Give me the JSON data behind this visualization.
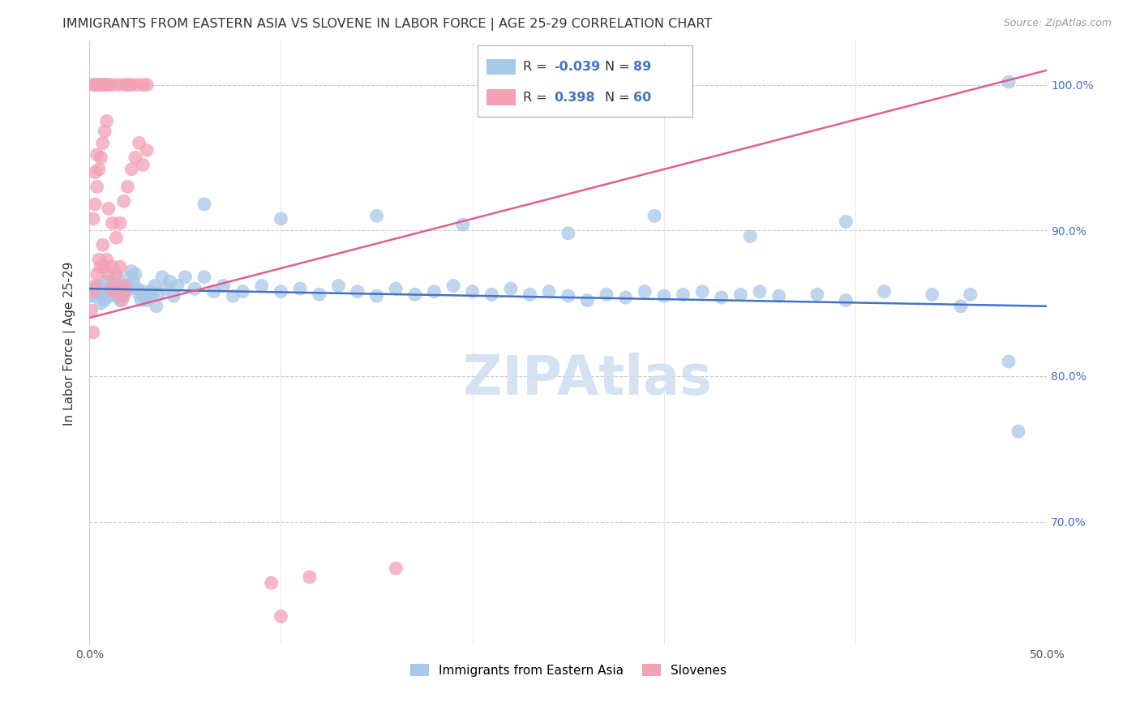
{
  "title": "IMMIGRANTS FROM EASTERN ASIA VS SLOVENE IN LABOR FORCE | AGE 25-29 CORRELATION CHART",
  "source": "Source: ZipAtlas.com",
  "ylabel": "In Labor Force | Age 25-29",
  "xlim": [
    0.0,
    0.5
  ],
  "ylim": [
    0.615,
    1.03
  ],
  "xticks": [
    0.0,
    0.1,
    0.2,
    0.3,
    0.4,
    0.5
  ],
  "xticklabels": [
    "0.0%",
    "",
    "",
    "",
    "",
    "50.0%"
  ],
  "ytick_positions": [
    0.7,
    0.8,
    0.9,
    1.0
  ],
  "yticklabels": [
    "70.0%",
    "80.0%",
    "90.0%",
    "100.0%"
  ],
  "color_blue": "#a8c8e8",
  "color_pink": "#f4a0b5",
  "trendline_blue": "#4472c4",
  "trendline_pink": "#e06090",
  "watermark_color": "#d0dff0",
  "background_color": "#ffffff",
  "grid_color": "#dddddd",
  "blue_scatter": [
    [
      0.002,
      0.855
    ],
    [
      0.003,
      0.86
    ],
    [
      0.004,
      0.858
    ],
    [
      0.005,
      0.862
    ],
    [
      0.006,
      0.85
    ],
    [
      0.007,
      0.856
    ],
    [
      0.008,
      0.852
    ],
    [
      0.009,
      0.865
    ],
    [
      0.01,
      0.858
    ],
    [
      0.011,
      0.855
    ],
    [
      0.012,
      0.862
    ],
    [
      0.013,
      0.858
    ],
    [
      0.014,
      0.868
    ],
    [
      0.015,
      0.855
    ],
    [
      0.016,
      0.852
    ],
    [
      0.017,
      0.86
    ],
    [
      0.018,
      0.855
    ],
    [
      0.019,
      0.862
    ],
    [
      0.02,
      0.86
    ],
    [
      0.021,
      0.868
    ],
    [
      0.022,
      0.872
    ],
    [
      0.023,
      0.865
    ],
    [
      0.024,
      0.87
    ],
    [
      0.025,
      0.86
    ],
    [
      0.026,
      0.856
    ],
    [
      0.027,
      0.852
    ],
    [
      0.028,
      0.858
    ],
    [
      0.029,
      0.854
    ],
    [
      0.03,
      0.852
    ],
    [
      0.032,
      0.858
    ],
    [
      0.033,
      0.856
    ],
    [
      0.034,
      0.862
    ],
    [
      0.035,
      0.848
    ],
    [
      0.036,
      0.856
    ],
    [
      0.038,
      0.868
    ],
    [
      0.04,
      0.86
    ],
    [
      0.042,
      0.865
    ],
    [
      0.044,
      0.855
    ],
    [
      0.046,
      0.862
    ],
    [
      0.05,
      0.868
    ],
    [
      0.055,
      0.86
    ],
    [
      0.06,
      0.868
    ],
    [
      0.065,
      0.858
    ],
    [
      0.07,
      0.862
    ],
    [
      0.075,
      0.855
    ],
    [
      0.08,
      0.858
    ],
    [
      0.09,
      0.862
    ],
    [
      0.1,
      0.858
    ],
    [
      0.11,
      0.86
    ],
    [
      0.12,
      0.856
    ],
    [
      0.13,
      0.862
    ],
    [
      0.14,
      0.858
    ],
    [
      0.15,
      0.855
    ],
    [
      0.16,
      0.86
    ],
    [
      0.17,
      0.856
    ],
    [
      0.18,
      0.858
    ],
    [
      0.19,
      0.862
    ],
    [
      0.2,
      0.858
    ],
    [
      0.21,
      0.856
    ],
    [
      0.22,
      0.86
    ],
    [
      0.23,
      0.856
    ],
    [
      0.24,
      0.858
    ],
    [
      0.25,
      0.855
    ],
    [
      0.26,
      0.852
    ],
    [
      0.27,
      0.856
    ],
    [
      0.28,
      0.854
    ],
    [
      0.29,
      0.858
    ],
    [
      0.3,
      0.855
    ],
    [
      0.31,
      0.856
    ],
    [
      0.32,
      0.858
    ],
    [
      0.33,
      0.854
    ],
    [
      0.34,
      0.856
    ],
    [
      0.35,
      0.858
    ],
    [
      0.36,
      0.855
    ],
    [
      0.06,
      0.918
    ],
    [
      0.1,
      0.908
    ],
    [
      0.15,
      0.91
    ],
    [
      0.195,
      0.904
    ],
    [
      0.25,
      0.898
    ],
    [
      0.295,
      0.91
    ],
    [
      0.345,
      0.896
    ],
    [
      0.395,
      0.906
    ],
    [
      0.38,
      0.856
    ],
    [
      0.395,
      0.852
    ],
    [
      0.415,
      0.858
    ],
    [
      0.44,
      0.856
    ],
    [
      0.455,
      0.848
    ],
    [
      0.46,
      0.856
    ],
    [
      0.48,
      0.81
    ],
    [
      0.485,
      0.762
    ],
    [
      0.0,
      0.855
    ],
    [
      0.48,
      1.002
    ]
  ],
  "pink_scatter": [
    [
      0.002,
      0.858
    ],
    [
      0.003,
      0.862
    ],
    [
      0.004,
      0.87
    ],
    [
      0.005,
      0.88
    ],
    [
      0.006,
      0.875
    ],
    [
      0.007,
      0.89
    ],
    [
      0.008,
      0.875
    ],
    [
      0.009,
      0.88
    ],
    [
      0.01,
      0.87
    ],
    [
      0.011,
      0.86
    ],
    [
      0.012,
      0.875
    ],
    [
      0.013,
      0.858
    ],
    [
      0.014,
      0.87
    ],
    [
      0.015,
      0.862
    ],
    [
      0.016,
      0.875
    ],
    [
      0.017,
      0.852
    ],
    [
      0.018,
      0.862
    ],
    [
      0.019,
      0.858
    ],
    [
      0.002,
      0.908
    ],
    [
      0.003,
      0.918
    ],
    [
      0.004,
      0.93
    ],
    [
      0.005,
      0.942
    ],
    [
      0.006,
      0.95
    ],
    [
      0.007,
      0.96
    ],
    [
      0.008,
      0.968
    ],
    [
      0.009,
      0.975
    ],
    [
      0.003,
      0.94
    ],
    [
      0.004,
      0.952
    ],
    [
      0.01,
      0.915
    ],
    [
      0.012,
      0.905
    ],
    [
      0.014,
      0.895
    ],
    [
      0.016,
      0.905
    ],
    [
      0.018,
      0.92
    ],
    [
      0.02,
      0.93
    ],
    [
      0.022,
      0.942
    ],
    [
      0.024,
      0.95
    ],
    [
      0.026,
      0.96
    ],
    [
      0.028,
      0.945
    ],
    [
      0.03,
      0.955
    ],
    [
      0.002,
      1.0
    ],
    [
      0.003,
      1.0
    ],
    [
      0.004,
      1.0
    ],
    [
      0.005,
      1.0
    ],
    [
      0.006,
      1.0
    ],
    [
      0.007,
      1.0
    ],
    [
      0.008,
      1.0
    ],
    [
      0.009,
      1.0
    ],
    [
      0.01,
      1.0
    ],
    [
      0.012,
      1.0
    ],
    [
      0.015,
      1.0
    ],
    [
      0.018,
      1.0
    ],
    [
      0.02,
      1.0
    ],
    [
      0.022,
      1.0
    ],
    [
      0.025,
      1.0
    ],
    [
      0.028,
      1.0
    ],
    [
      0.03,
      1.0
    ],
    [
      0.002,
      0.83
    ],
    [
      0.001,
      0.845
    ],
    [
      0.095,
      0.658
    ],
    [
      0.115,
      0.662
    ],
    [
      0.1,
      0.635
    ],
    [
      0.16,
      0.668
    ]
  ],
  "blue_trend_x": [
    0.0,
    0.5
  ],
  "blue_trend_y": [
    0.86,
    0.848
  ],
  "pink_trend_x": [
    0.0,
    0.5
  ],
  "pink_trend_y": [
    0.84,
    1.01
  ]
}
